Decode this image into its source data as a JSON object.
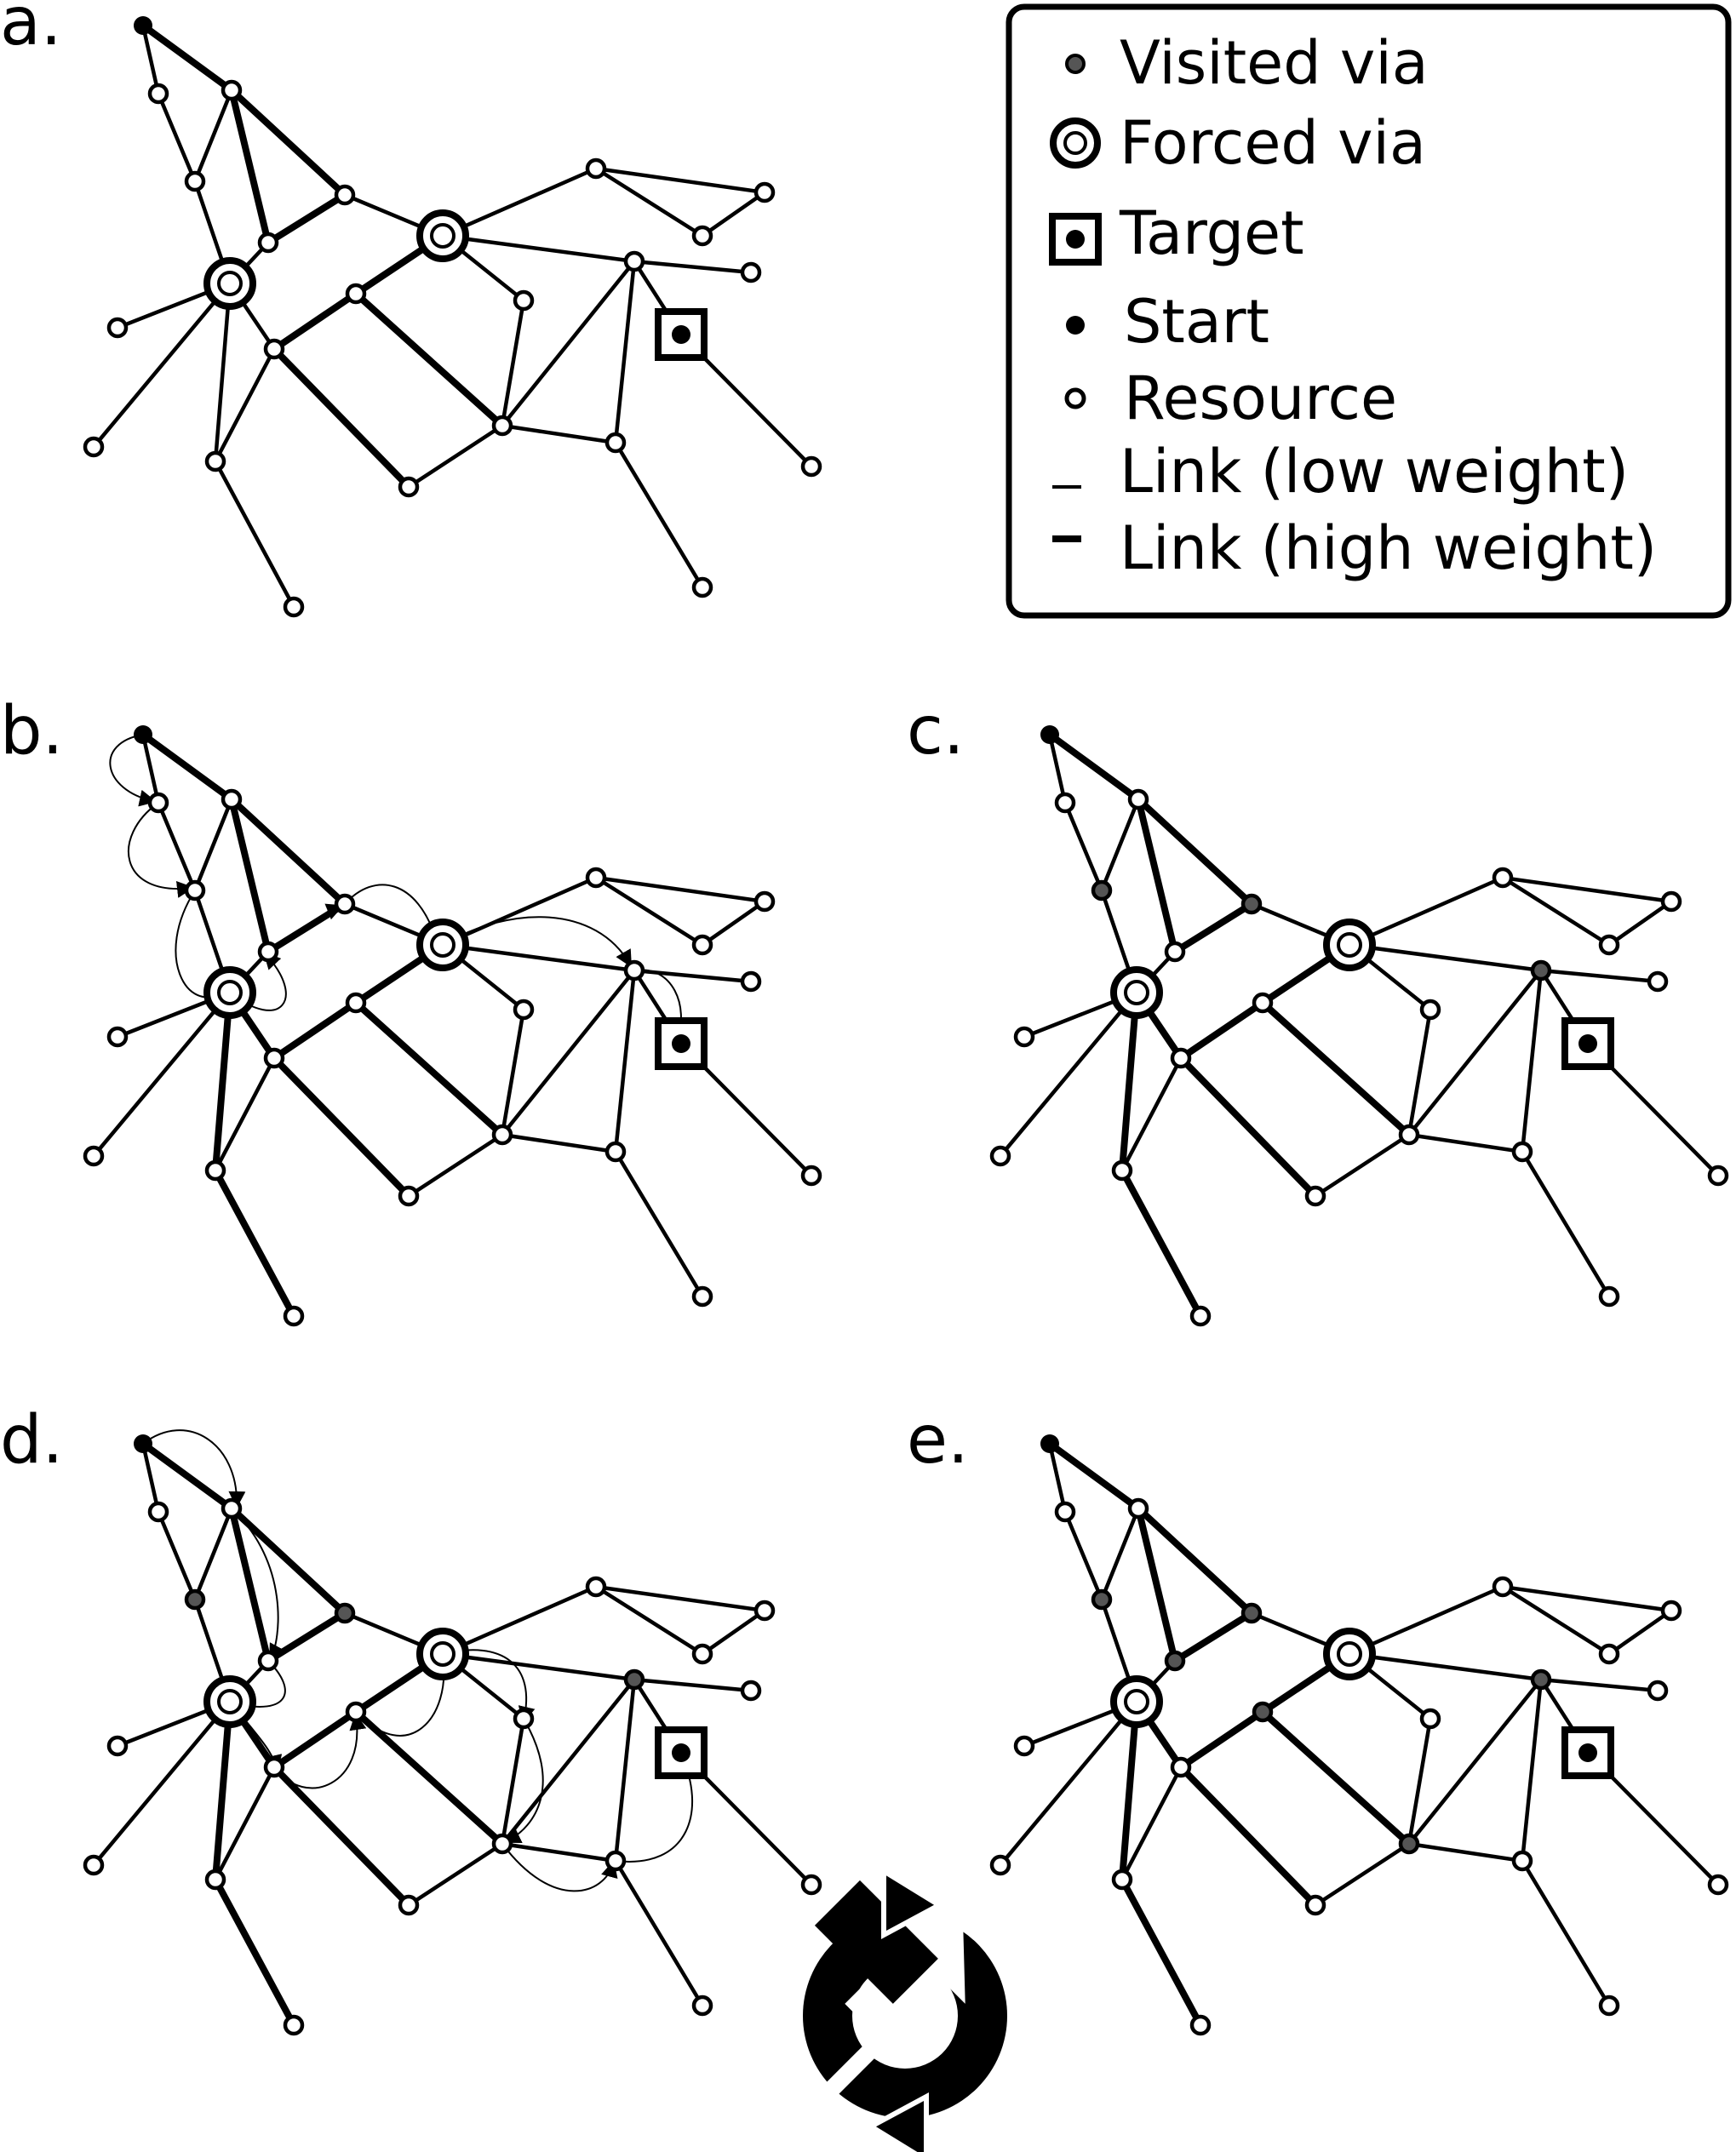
{
  "colors": {
    "ink": "#000000",
    "visited_via": "#555555",
    "resource_fill": "#ffffff",
    "start": "#000000"
  },
  "legend": {
    "items": [
      {
        "key": "visited",
        "label": "Visited via",
        "icon": "visited-via-icon"
      },
      {
        "key": "forced",
        "label": "Forced via",
        "icon": "forced-via-icon"
      },
      {
        "key": "target",
        "label": "Target",
        "icon": "target-icon"
      },
      {
        "key": "start",
        "label": "Start",
        "icon": "start-icon"
      },
      {
        "key": "resource",
        "label": "Resource",
        "icon": "resource-icon"
      },
      {
        "key": "low",
        "label": "Link (low weight)",
        "icon": "low-weight-link-icon"
      },
      {
        "key": "high",
        "label": "Link (high weight)",
        "icon": "high-weight-link-icon"
      }
    ]
  },
  "panels": [
    {
      "id": "a",
      "label": "a.",
      "arrows": false
    },
    {
      "id": "b",
      "label": "b.",
      "arrows": true
    },
    {
      "id": "c",
      "label": "c.",
      "arrows": false
    },
    {
      "id": "d",
      "label": "d.",
      "arrows": true
    },
    {
      "id": "e",
      "label": "e.",
      "arrows": false
    }
  ],
  "graph": {
    "nodes": [
      {
        "id": "S",
        "type": "start"
      },
      {
        "id": "N2",
        "type": "resource"
      },
      {
        "id": "N3",
        "type": "resource"
      },
      {
        "id": "N4",
        "type": "resource"
      },
      {
        "id": "N5",
        "type": "resource"
      },
      {
        "id": "N6",
        "type": "resource"
      },
      {
        "id": "F1",
        "type": "forced"
      },
      {
        "id": "F2",
        "type": "forced"
      },
      {
        "id": "N9",
        "type": "resource"
      },
      {
        "id": "N10",
        "type": "resource"
      },
      {
        "id": "N11",
        "type": "resource"
      },
      {
        "id": "N12",
        "type": "resource"
      },
      {
        "id": "N13",
        "type": "resource"
      },
      {
        "id": "N14",
        "type": "resource"
      },
      {
        "id": "N15",
        "type": "resource"
      },
      {
        "id": "N16",
        "type": "resource"
      },
      {
        "id": "N17",
        "type": "resource"
      },
      {
        "id": "N18",
        "type": "resource"
      },
      {
        "id": "N19",
        "type": "resource"
      },
      {
        "id": "N20",
        "type": "resource"
      },
      {
        "id": "N21",
        "type": "resource"
      },
      {
        "id": "N22",
        "type": "resource"
      },
      {
        "id": "T",
        "type": "target"
      },
      {
        "id": "N24",
        "type": "resource"
      },
      {
        "id": "N25",
        "type": "resource"
      }
    ],
    "edges": [
      {
        "from": "S",
        "to": "N2",
        "weight": "low"
      },
      {
        "from": "S",
        "to": "N3",
        "weight": "high"
      },
      {
        "from": "N2",
        "to": "N4",
        "weight": "low"
      },
      {
        "from": "N4",
        "to": "N3",
        "weight": "low"
      },
      {
        "from": "N4",
        "to": "F1",
        "weight": "low"
      },
      {
        "from": "N3",
        "to": "N5",
        "weight": "high"
      },
      {
        "from": "N3",
        "to": "N6",
        "weight": "high"
      },
      {
        "from": "N6",
        "to": "N5",
        "weight": "high"
      },
      {
        "from": "N6",
        "to": "F1",
        "weight": "low"
      },
      {
        "from": "N5",
        "to": "F2",
        "weight": "low"
      },
      {
        "from": "F1",
        "to": "N9",
        "weight": "low"
      },
      {
        "from": "F1",
        "to": "N10",
        "weight": "low"
      },
      {
        "from": "F1",
        "to": "N11",
        "weight": "low"
      },
      {
        "from": "F1",
        "to": "N12",
        "weight": "low"
      },
      {
        "from": "N12",
        "to": "N11",
        "weight": "low"
      },
      {
        "from": "N12",
        "to": "N14",
        "weight": "high"
      },
      {
        "from": "N14",
        "to": "F2",
        "weight": "high"
      },
      {
        "from": "N11",
        "to": "N13",
        "weight": "low"
      },
      {
        "from": "N12",
        "to": "N15",
        "weight": "high"
      },
      {
        "from": "N14",
        "to": "N16",
        "weight": "high"
      },
      {
        "from": "N15",
        "to": "N16",
        "weight": "low"
      },
      {
        "from": "F2",
        "to": "N17",
        "weight": "low"
      },
      {
        "from": "F2",
        "to": "N18",
        "weight": "low"
      },
      {
        "from": "F2",
        "to": "N19",
        "weight": "low"
      },
      {
        "from": "N18",
        "to": "N20",
        "weight": "low"
      },
      {
        "from": "N18",
        "to": "N21",
        "weight": "low"
      },
      {
        "from": "N21",
        "to": "N20",
        "weight": "low"
      },
      {
        "from": "N19",
        "to": "N22",
        "weight": "low"
      },
      {
        "from": "N19",
        "to": "N16",
        "weight": "low"
      },
      {
        "from": "N17",
        "to": "N16",
        "weight": "low"
      },
      {
        "from": "N16",
        "to": "N24",
        "weight": "low"
      },
      {
        "from": "N24",
        "to": "N19",
        "weight": "low"
      },
      {
        "from": "N19",
        "to": "T",
        "weight": "low"
      },
      {
        "from": "T",
        "to": "N25",
        "weight": "low"
      },
      {
        "from": "N24",
        "to": "N26",
        "weight": "low"
      }
    ],
    "extra_nodes": [
      {
        "id": "N26",
        "type": "resource"
      }
    ]
  },
  "reload_icon": "reload-cycle-icon"
}
